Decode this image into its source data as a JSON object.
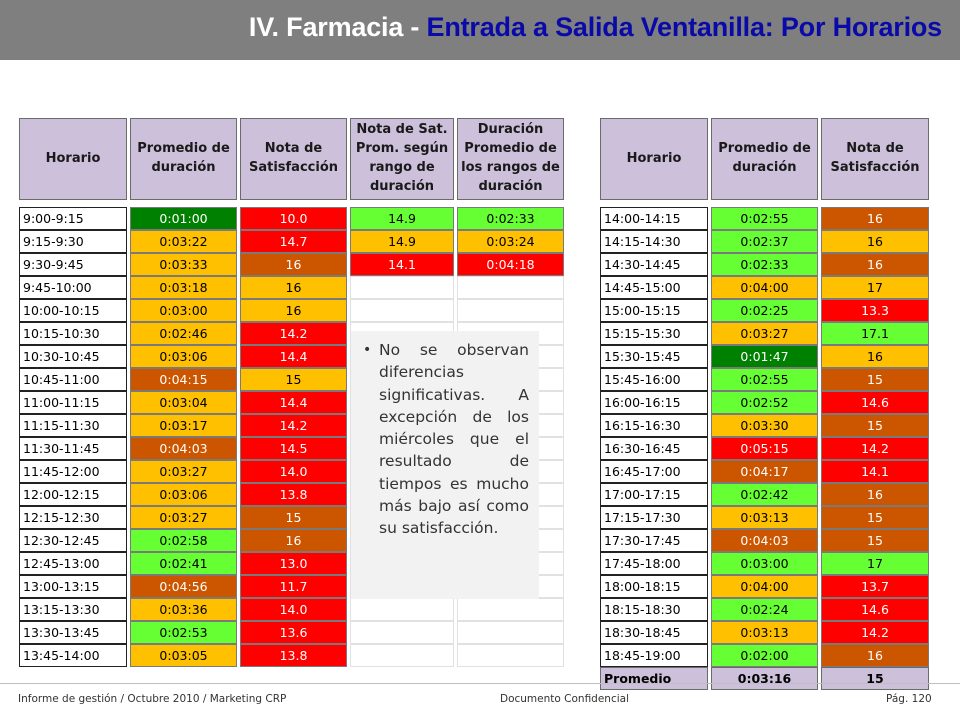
{
  "header": {
    "title_prefix": "IV. Farmacia - ",
    "title_main": "Entrada a Salida Ventanilla: Por Horarios"
  },
  "colors": {
    "green": "#66ff33",
    "dark_green": "#008000",
    "orange": "#ffc000",
    "red": "#ff0000",
    "burnt": "#cc5500",
    "header_bg": "#ccc0da",
    "title_bar": "#7f7f7f",
    "title_blue": "#0a0aa8"
  },
  "left_table": {
    "headers": [
      "Horario",
      "Promedio de duración",
      "Nota de Satisfacción",
      "Nota de Sat. Prom. según rango de duración",
      "Duración Promedio de los rangos de duración"
    ],
    "rows": [
      {
        "h": "9:00-9:15",
        "d": "0:01:00",
        "dc": "cDG",
        "n": "10.0",
        "nc": "cR",
        "r": "14.9",
        "rc": "cG",
        "rd": "0:02:33",
        "rdc": "cG"
      },
      {
        "h": "9:15-9:30",
        "d": "0:03:22",
        "dc": "cO",
        "n": "14.7",
        "nc": "cR",
        "r": "14.9",
        "rc": "cO",
        "rd": "0:03:24",
        "rdc": "cO"
      },
      {
        "h": "9:30-9:45",
        "d": "0:03:33",
        "dc": "cO",
        "n": "16",
        "nc": "cB",
        "r": "14.1",
        "rc": "cR",
        "rd": "0:04:18",
        "rdc": "cR"
      },
      {
        "h": "9:45-10:00",
        "d": "0:03:18",
        "dc": "cO",
        "n": "16",
        "nc": "cO"
      },
      {
        "h": "10:00-10:15",
        "d": "0:03:00",
        "dc": "cO",
        "n": "16",
        "nc": "cO"
      },
      {
        "h": "10:15-10:30",
        "d": "0:02:46",
        "dc": "cO",
        "n": "14.2",
        "nc": "cR"
      },
      {
        "h": "10:30-10:45",
        "d": "0:03:06",
        "dc": "cO",
        "n": "14.4",
        "nc": "cR"
      },
      {
        "h": "10:45-11:00",
        "d": "0:04:15",
        "dc": "cB",
        "n": "15",
        "nc": "cO"
      },
      {
        "h": "11:00-11:15",
        "d": "0:03:04",
        "dc": "cO",
        "n": "14.4",
        "nc": "cR"
      },
      {
        "h": "11:15-11:30",
        "d": "0:03:17",
        "dc": "cO",
        "n": "14.2",
        "nc": "cR"
      },
      {
        "h": "11:30-11:45",
        "d": "0:04:03",
        "dc": "cB",
        "n": "14.5",
        "nc": "cR"
      },
      {
        "h": "11:45-12:00",
        "d": "0:03:27",
        "dc": "cO",
        "n": "14.0",
        "nc": "cR"
      },
      {
        "h": "12:00-12:15",
        "d": "0:03:06",
        "dc": "cO",
        "n": "13.8",
        "nc": "cR"
      },
      {
        "h": "12:15-12:30",
        "d": "0:03:27",
        "dc": "cO",
        "n": "15",
        "nc": "cB"
      },
      {
        "h": "12:30-12:45",
        "d": "0:02:58",
        "dc": "cG",
        "n": "16",
        "nc": "cB"
      },
      {
        "h": "12:45-13:00",
        "d": "0:02:41",
        "dc": "cG",
        "n": "13.0",
        "nc": "cR"
      },
      {
        "h": "13:00-13:15",
        "d": "0:04:56",
        "dc": "cB",
        "n": "11.7",
        "nc": "cR"
      },
      {
        "h": "13:15-13:30",
        "d": "0:03:36",
        "dc": "cO",
        "n": "14.0",
        "nc": "cR"
      },
      {
        "h": "13:30-13:45",
        "d": "0:02:53",
        "dc": "cG",
        "n": "13.6",
        "nc": "cR"
      },
      {
        "h": "13:45-14:00",
        "d": "0:03:05",
        "dc": "cO",
        "n": "13.8",
        "nc": "cR"
      }
    ]
  },
  "right_table": {
    "headers": [
      "Horario",
      "Promedio de duración",
      "Nota de Satisfacción"
    ],
    "rows": [
      {
        "h": "14:00-14:15",
        "d": "0:02:55",
        "dc": "cG",
        "n": "16",
        "nc": "cB"
      },
      {
        "h": "14:15-14:30",
        "d": "0:02:37",
        "dc": "cG",
        "n": "16",
        "nc": "cO"
      },
      {
        "h": "14:30-14:45",
        "d": "0:02:33",
        "dc": "cG",
        "n": "16",
        "nc": "cB"
      },
      {
        "h": "14:45-15:00",
        "d": "0:04:00",
        "dc": "cO",
        "n": "17",
        "nc": "cO"
      },
      {
        "h": "15:00-15:15",
        "d": "0:02:25",
        "dc": "cG",
        "n": "13.3",
        "nc": "cR"
      },
      {
        "h": "15:15-15:30",
        "d": "0:03:27",
        "dc": "cO",
        "n": "17.1",
        "nc": "cG"
      },
      {
        "h": "15:30-15:45",
        "d": "0:01:47",
        "dc": "cDG",
        "n": "16",
        "nc": "cO"
      },
      {
        "h": "15:45-16:00",
        "d": "0:02:55",
        "dc": "cG",
        "n": "15",
        "nc": "cB"
      },
      {
        "h": "16:00-16:15",
        "d": "0:02:52",
        "dc": "cG",
        "n": "14.6",
        "nc": "cR"
      },
      {
        "h": "16:15-16:30",
        "d": "0:03:30",
        "dc": "cO",
        "n": "15",
        "nc": "cB"
      },
      {
        "h": "16:30-16:45",
        "d": "0:05:15",
        "dc": "cR",
        "n": "14.2",
        "nc": "cR"
      },
      {
        "h": "16:45-17:00",
        "d": "0:04:17",
        "dc": "cB",
        "n": "14.1",
        "nc": "cR"
      },
      {
        "h": "17:00-17:15",
        "d": "0:02:42",
        "dc": "cG",
        "n": "16",
        "nc": "cB"
      },
      {
        "h": "17:15-17:30",
        "d": "0:03:13",
        "dc": "cO",
        "n": "15",
        "nc": "cB"
      },
      {
        "h": "17:30-17:45",
        "d": "0:04:03",
        "dc": "cB",
        "n": "15",
        "nc": "cB"
      },
      {
        "h": "17:45-18:00",
        "d": "0:03:00",
        "dc": "cG",
        "n": "17",
        "nc": "cG"
      },
      {
        "h": "18:00-18:15",
        "d": "0:04:00",
        "dc": "cO",
        "n": "13.7",
        "nc": "cR"
      },
      {
        "h": "18:15-18:30",
        "d": "0:02:24",
        "dc": "cG",
        "n": "14.6",
        "nc": "cR"
      },
      {
        "h": "18:30-18:45",
        "d": "0:03:13",
        "dc": "cO",
        "n": "14.2",
        "nc": "cR"
      },
      {
        "h": "18:45-19:00",
        "d": "0:02:00",
        "dc": "cG",
        "n": "16",
        "nc": "cB"
      }
    ],
    "average": {
      "label": "Promedio",
      "d": "0:03:16",
      "n": "15"
    }
  },
  "note": {
    "bullet": "•",
    "text": "No se observan diferencias significativas. A excepción de los miércoles que el resultado de tiempos es mucho más bajo así como su satisfacción."
  },
  "footer": {
    "left": "Informe de gestión / Octubre 2010 / Marketing CRP",
    "center": "Documento Confidencial",
    "right": "Pág. 120"
  }
}
